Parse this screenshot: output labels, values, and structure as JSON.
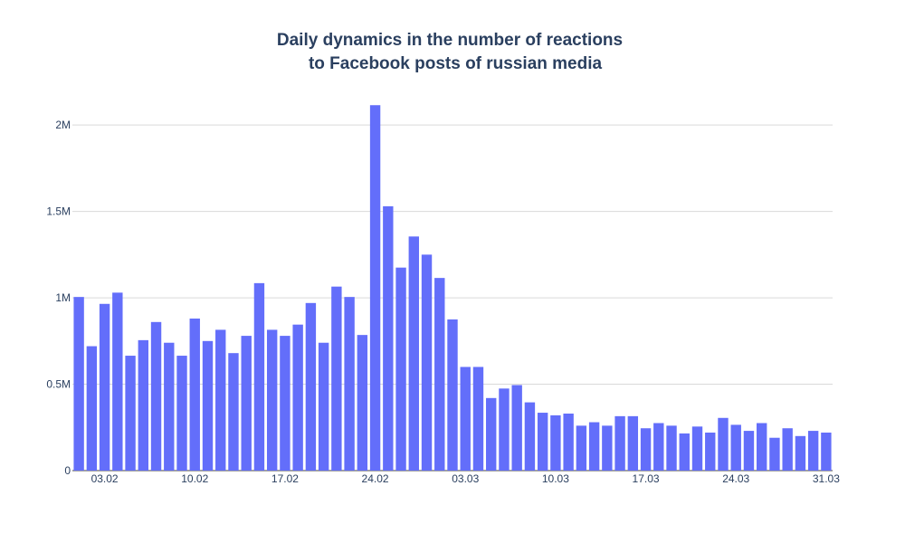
{
  "chart_data": {
    "type": "bar",
    "title_lines": [
      "Daily dynamics in the number of reactions",
      "to Facebook posts of russian media"
    ],
    "xlabel": "",
    "ylabel": "",
    "x_start": "2022-02-01",
    "x_tick_dates": [
      "2022-02-03",
      "2022-02-10",
      "2022-02-17",
      "2022-02-24",
      "2022-03-03",
      "2022-03-10",
      "2022-03-17",
      "2022-03-24",
      "2022-03-31"
    ],
    "x_tick_labels": [
      "03.02",
      "10.02",
      "17.02",
      "24.02",
      "03.03",
      "10.03",
      "17.03",
      "24.03",
      "31.03"
    ],
    "y_ticks": [
      0,
      500000,
      1000000,
      1500000,
      2000000
    ],
    "y_tick_labels": [
      "0",
      "0.5M",
      "1M",
      "1.5M",
      "2M"
    ],
    "ylim": [
      0,
      2200000
    ],
    "bar_color": "#636efa",
    "grid": true,
    "values": [
      1005000,
      720000,
      965000,
      1030000,
      665000,
      755000,
      860000,
      740000,
      665000,
      880000,
      750000,
      815000,
      680000,
      780000,
      1085000,
      815000,
      780000,
      845000,
      970000,
      740000,
      1065000,
      1005000,
      785000,
      2115000,
      1530000,
      1175000,
      1355000,
      1250000,
      1115000,
      875000,
      600000,
      600000,
      420000,
      475000,
      495000,
      395000,
      335000,
      320000,
      330000,
      260000,
      280000,
      260000,
      315000,
      315000,
      245000,
      275000,
      260000,
      215000,
      255000,
      220000,
      305000,
      265000,
      230000,
      275000,
      190000,
      245000,
      200000,
      230000,
      220000
    ]
  }
}
